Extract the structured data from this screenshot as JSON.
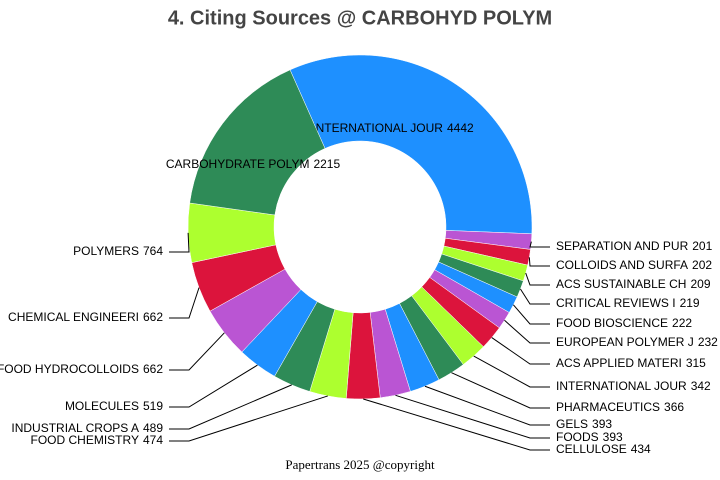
{
  "chart_data": {
    "type": "donut",
    "title": "4. Citing Sources @ CARBOHYD POLYM",
    "categories": [
      "INTERNATIONAL JOUR",
      "SEPARATION AND PUR",
      "COLLOIDS AND SURFA",
      "ACS SUSTAINABLE CH",
      "CRITICAL REVIEWS I",
      "FOOD BIOSCIENCE",
      "EUROPEAN POLYMER J",
      "ACS APPLIED MATERI",
      "INTERNATIONAL JOUR",
      "PHARMACEUTICS",
      "GELS",
      "FOODS",
      "CELLULOSE",
      "FOOD CHEMISTRY",
      "INDUSTRIAL CROPS A",
      "MOLECULES",
      "FOOD HYDROCOLLOIDS",
      "CHEMICAL ENGINEERI",
      "POLYMERS",
      "CARBOHYDRATE POLYM"
    ],
    "values": [
      4442,
      201,
      202,
      209,
      219,
      222,
      232,
      315,
      342,
      366,
      393,
      393,
      434,
      474,
      489,
      519,
      662,
      662,
      764,
      2215
    ],
    "colors": [
      "#1e90ff",
      "#ba55d3",
      "#dc143c",
      "#adff2f",
      "#2e8b57",
      "#1e90ff",
      "#ba55d3",
      "#dc143c",
      "#adff2f",
      "#2e8b57",
      "#1e90ff",
      "#ba55d3",
      "#dc143c",
      "#adff2f",
      "#2e8b57",
      "#1e90ff",
      "#ba55d3",
      "#dc143c",
      "#adff2f",
      "#2e8b57"
    ],
    "caption": "Papertrans 2025 @copyright"
  }
}
